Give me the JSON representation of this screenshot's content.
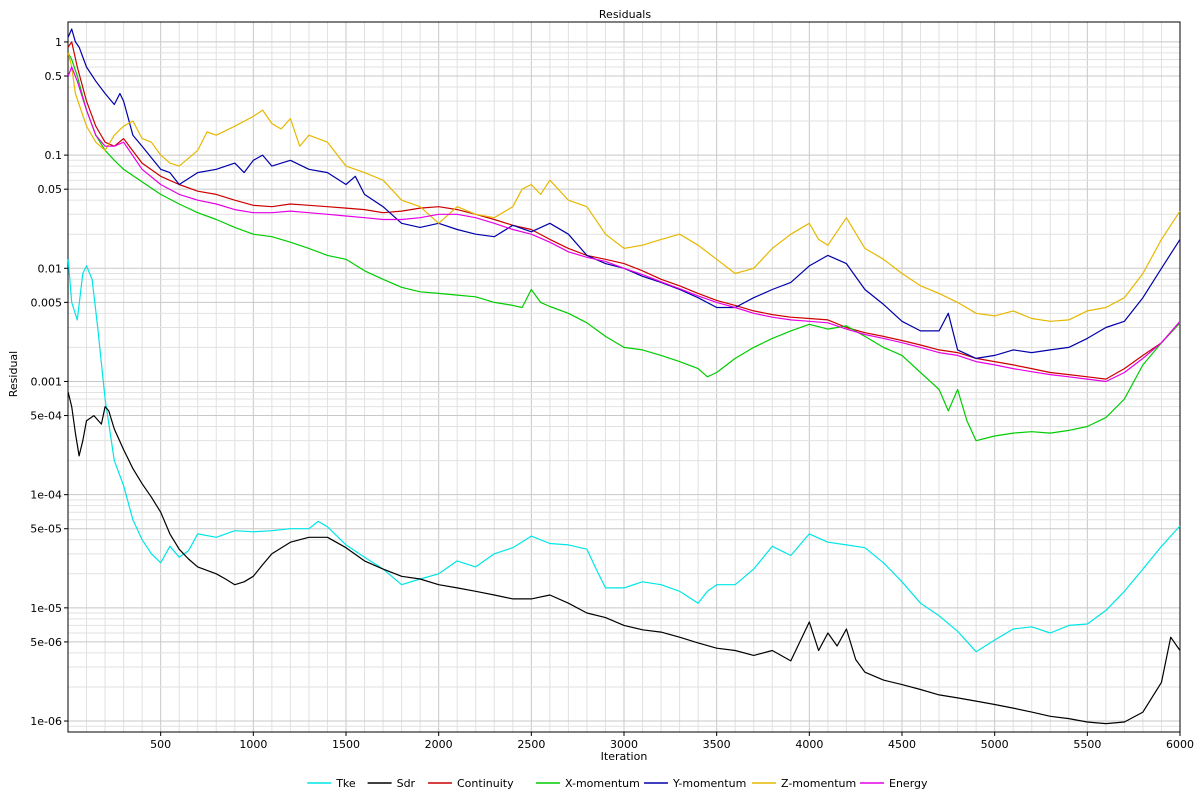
{
  "chart_data": {
    "type": "line",
    "title": "Residuals",
    "xlabel": "Iteration",
    "ylabel": "Residual",
    "xlim": [
      0,
      6000
    ],
    "ylim": [
      8e-07,
      1.5
    ],
    "yscale": "log",
    "grid": true,
    "legend_position": "bottom",
    "xticks": [
      500,
      1000,
      1500,
      2000,
      2500,
      3000,
      3500,
      4000,
      4500,
      5000,
      5500,
      6000
    ],
    "yticks": [
      {
        "value": 1,
        "label": "1"
      },
      {
        "value": 0.5,
        "label": "0.5"
      },
      {
        "value": 0.1,
        "label": "0.1"
      },
      {
        "value": 0.05,
        "label": "0.05"
      },
      {
        "value": 0.01,
        "label": "0.01"
      },
      {
        "value": 0.005,
        "label": "0.005"
      },
      {
        "value": 0.001,
        "label": "0.001"
      },
      {
        "value": 0.0005,
        "label": "5e-04"
      },
      {
        "value": 0.0001,
        "label": "1e-04"
      },
      {
        "value": 5e-05,
        "label": "5e-05"
      },
      {
        "value": 1e-05,
        "label": "1e-05"
      },
      {
        "value": 5e-06,
        "label": "5e-06"
      },
      {
        "value": 1e-06,
        "label": "1e-06"
      }
    ],
    "series": [
      {
        "name": "Tke",
        "color": "#00e6e6",
        "x": [
          1,
          20,
          50,
          80,
          100,
          130,
          160,
          200,
          250,
          300,
          350,
          400,
          450,
          500,
          550,
          600,
          650,
          700,
          800,
          900,
          1000,
          1100,
          1200,
          1300,
          1350,
          1400,
          1500,
          1600,
          1700,
          1800,
          1900,
          2000,
          2100,
          2200,
          2300,
          2400,
          2500,
          2600,
          2700,
          2800,
          2850,
          2900,
          3000,
          3100,
          3200,
          3300,
          3400,
          3450,
          3500,
          3600,
          3700,
          3800,
          3900,
          4000,
          4100,
          4200,
          4300,
          4400,
          4500,
          4600,
          4700,
          4800,
          4900,
          5000,
          5100,
          5200,
          5300,
          5400,
          5500,
          5600,
          5700,
          5800,
          5900,
          6000
        ],
        "y": [
          0.012,
          0.005,
          0.0035,
          0.009,
          0.0105,
          0.008,
          0.003,
          0.0007,
          0.0002,
          0.00012,
          6e-05,
          4e-05,
          3e-05,
          2.5e-05,
          3.5e-05,
          2.8e-05,
          3.2e-05,
          4.5e-05,
          4.2e-05,
          4.8e-05,
          4.7e-05,
          4.8e-05,
          5e-05,
          5e-05,
          5.8e-05,
          5.2e-05,
          3.6e-05,
          2.8e-05,
          2.2e-05,
          1.6e-05,
          1.8e-05,
          2e-05,
          2.6e-05,
          2.3e-05,
          3e-05,
          3.4e-05,
          4.3e-05,
          3.7e-05,
          3.6e-05,
          3.3e-05,
          2.2e-05,
          1.5e-05,
          1.5e-05,
          1.7e-05,
          1.6e-05,
          1.4e-05,
          1.1e-05,
          1.4e-05,
          1.6e-05,
          1.6e-05,
          2.2e-05,
          3.5e-05,
          2.9e-05,
          4.5e-05,
          3.8e-05,
          3.6e-05,
          3.4e-05,
          2.5e-05,
          1.7e-05,
          1.1e-05,
          8.5e-06,
          6.2e-06,
          4.1e-06,
          5.2e-06,
          6.5e-06,
          6.8e-06,
          6e-06,
          7e-06,
          7.2e-06,
          9.5e-06,
          1.4e-05,
          2.2e-05,
          3.5e-05,
          5.3e-05
        ]
      },
      {
        "name": "Sdr",
        "color": "#000000",
        "x": [
          1,
          20,
          40,
          60,
          80,
          100,
          140,
          180,
          200,
          220,
          250,
          300,
          350,
          400,
          450,
          500,
          550,
          600,
          650,
          700,
          800,
          850,
          900,
          950,
          1000,
          1050,
          1100,
          1200,
          1300,
          1400,
          1500,
          1600,
          1700,
          1800,
          1900,
          2000,
          2100,
          2200,
          2300,
          2400,
          2500,
          2600,
          2700,
          2800,
          2900,
          3000,
          3100,
          3200,
          3300,
          3400,
          3500,
          3600,
          3700,
          3800,
          3900,
          4000,
          4050,
          4100,
          4150,
          4200,
          4250,
          4300,
          4400,
          4500,
          4600,
          4700,
          4800,
          4900,
          5000,
          5100,
          5200,
          5300,
          5400,
          5500,
          5600,
          5700,
          5800,
          5900,
          5950,
          6000
        ],
        "y": [
          0.0008,
          0.0006,
          0.00035,
          0.00022,
          0.0003,
          0.00045,
          0.0005,
          0.00042,
          0.0006,
          0.00055,
          0.00038,
          0.00025,
          0.00017,
          0.000125,
          9.5e-05,
          7e-05,
          4.5e-05,
          3.3e-05,
          2.7e-05,
          2.3e-05,
          2e-05,
          1.8e-05,
          1.6e-05,
          1.7e-05,
          1.9e-05,
          2.4e-05,
          3e-05,
          3.8e-05,
          4.2e-05,
          4.2e-05,
          3.4e-05,
          2.6e-05,
          2.2e-05,
          1.9e-05,
          1.8e-05,
          1.6e-05,
          1.5e-05,
          1.4e-05,
          1.3e-05,
          1.2e-05,
          1.2e-05,
          1.3e-05,
          1.1e-05,
          9e-06,
          8.2e-06,
          7e-06,
          6.4e-06,
          6.1e-06,
          5.5e-06,
          4.9e-06,
          4.4e-06,
          4.2e-06,
          3.8e-06,
          4.2e-06,
          3.4e-06,
          7.5e-06,
          4.2e-06,
          6e-06,
          4.6e-06,
          6.5e-06,
          3.5e-06,
          2.7e-06,
          2.3e-06,
          2.1e-06,
          1.9e-06,
          1.7e-06,
          1.6e-06,
          1.5e-06,
          1.4e-06,
          1.3e-06,
          1.2e-06,
          1.1e-06,
          1.05e-06,
          9.8e-07,
          9.5e-07,
          9.8e-07,
          1.2e-06,
          2.2e-06,
          5.5e-06,
          4.2e-06
        ]
      },
      {
        "name": "Continuity",
        "color": "#cc0000",
        "x": [
          1,
          20,
          50,
          100,
          150,
          200,
          250,
          300,
          400,
          500,
          600,
          700,
          800,
          900,
          1000,
          1100,
          1200,
          1300,
          1400,
          1500,
          1600,
          1700,
          1800,
          1900,
          2000,
          2100,
          2200,
          2300,
          2400,
          2500,
          2600,
          2700,
          2800,
          2900,
          3000,
          3100,
          3200,
          3300,
          3400,
          3500,
          3600,
          3700,
          3800,
          3900,
          4000,
          4100,
          4200,
          4300,
          4400,
          4500,
          4600,
          4700,
          4800,
          4900,
          5000,
          5100,
          5200,
          5300,
          5400,
          5500,
          5600,
          5700,
          5800,
          5900,
          6000
        ],
        "y": [
          0.9,
          1.0,
          0.6,
          0.3,
          0.18,
          0.13,
          0.12,
          0.14,
          0.085,
          0.065,
          0.055,
          0.048,
          0.045,
          0.04,
          0.036,
          0.035,
          0.037,
          0.036,
          0.035,
          0.034,
          0.033,
          0.031,
          0.032,
          0.034,
          0.035,
          0.033,
          0.03,
          0.027,
          0.024,
          0.022,
          0.018,
          0.015,
          0.013,
          0.012,
          0.011,
          0.0095,
          0.008,
          0.007,
          0.006,
          0.0052,
          0.0047,
          0.0042,
          0.0039,
          0.0037,
          0.0036,
          0.0035,
          0.003,
          0.0027,
          0.0025,
          0.0023,
          0.0021,
          0.0019,
          0.0018,
          0.0016,
          0.0015,
          0.0014,
          0.0013,
          0.0012,
          0.00115,
          0.0011,
          0.00105,
          0.0013,
          0.0017,
          0.0022,
          0.0033
        ]
      },
      {
        "name": "X-momentum",
        "color": "#00cc00",
        "x": [
          1,
          20,
          50,
          100,
          150,
          200,
          250,
          300,
          400,
          500,
          600,
          700,
          800,
          900,
          1000,
          1100,
          1200,
          1300,
          1400,
          1500,
          1600,
          1700,
          1800,
          1900,
          2000,
          2100,
          2200,
          2300,
          2400,
          2450,
          2500,
          2550,
          2600,
          2700,
          2800,
          2900,
          3000,
          3100,
          3200,
          3300,
          3400,
          3450,
          3500,
          3600,
          3700,
          3800,
          3900,
          4000,
          4100,
          4200,
          4300,
          4400,
          4500,
          4600,
          4700,
          4750,
          4800,
          4850,
          4900,
          5000,
          5100,
          5200,
          5300,
          5400,
          5500,
          5600,
          5700,
          5800,
          5900,
          6000
        ],
        "y": [
          0.8,
          0.7,
          0.5,
          0.25,
          0.15,
          0.11,
          0.09,
          0.075,
          0.058,
          0.045,
          0.037,
          0.031,
          0.027,
          0.023,
          0.02,
          0.019,
          0.017,
          0.015,
          0.013,
          0.012,
          0.0095,
          0.008,
          0.0068,
          0.0062,
          0.006,
          0.0058,
          0.0056,
          0.005,
          0.0047,
          0.0045,
          0.0065,
          0.005,
          0.0046,
          0.004,
          0.0033,
          0.0025,
          0.002,
          0.0019,
          0.0017,
          0.0015,
          0.0013,
          0.0011,
          0.0012,
          0.0016,
          0.002,
          0.0024,
          0.0028,
          0.0032,
          0.0029,
          0.0031,
          0.0025,
          0.002,
          0.0017,
          0.0012,
          0.00085,
          0.00055,
          0.00085,
          0.00045,
          0.0003,
          0.00033,
          0.00035,
          0.00036,
          0.00035,
          0.00037,
          0.0004,
          0.00048,
          0.0007,
          0.0014,
          0.0022,
          0.0033
        ]
      },
      {
        "name": "Y-momentum",
        "color": "#0000aa",
        "x": [
          1,
          20,
          40,
          60,
          100,
          150,
          200,
          250,
          280,
          300,
          350,
          400,
          500,
          550,
          600,
          700,
          800,
          900,
          950,
          1000,
          1050,
          1100,
          1200,
          1300,
          1400,
          1500,
          1550,
          1600,
          1700,
          1800,
          1900,
          2000,
          2100,
          2200,
          2300,
          2400,
          2500,
          2600,
          2700,
          2800,
          2900,
          3000,
          3100,
          3200,
          3300,
          3400,
          3500,
          3600,
          3700,
          3800,
          3900,
          4000,
          4100,
          4200,
          4300,
          4400,
          4500,
          4600,
          4700,
          4750,
          4800,
          4900,
          5000,
          5100,
          5200,
          5300,
          5400,
          5500,
          5600,
          5700,
          5800,
          5900,
          6000
        ],
        "y": [
          1.1,
          1.3,
          1.0,
          0.9,
          0.6,
          0.45,
          0.35,
          0.28,
          0.35,
          0.3,
          0.15,
          0.12,
          0.075,
          0.07,
          0.055,
          0.07,
          0.075,
          0.085,
          0.07,
          0.09,
          0.1,
          0.08,
          0.09,
          0.075,
          0.07,
          0.055,
          0.065,
          0.045,
          0.035,
          0.025,
          0.023,
          0.025,
          0.022,
          0.02,
          0.019,
          0.024,
          0.021,
          0.025,
          0.02,
          0.013,
          0.011,
          0.01,
          0.0085,
          0.0075,
          0.0065,
          0.0055,
          0.0045,
          0.0045,
          0.0055,
          0.0065,
          0.0075,
          0.0105,
          0.013,
          0.011,
          0.0065,
          0.0048,
          0.0034,
          0.0028,
          0.0028,
          0.004,
          0.0019,
          0.0016,
          0.0017,
          0.0019,
          0.0018,
          0.0019,
          0.002,
          0.0024,
          0.003,
          0.0034,
          0.0055,
          0.01,
          0.018
        ]
      },
      {
        "name": "Z-momentum",
        "color": "#e6b800",
        "x": [
          1,
          20,
          40,
          60,
          100,
          150,
          200,
          250,
          300,
          350,
          400,
          450,
          500,
          550,
          600,
          700,
          750,
          800,
          900,
          1000,
          1050,
          1100,
          1150,
          1200,
          1250,
          1300,
          1400,
          1500,
          1600,
          1700,
          1800,
          1900,
          2000,
          2100,
          2200,
          2300,
          2400,
          2450,
          2500,
          2550,
          2600,
          2700,
          2800,
          2900,
          3000,
          3100,
          3200,
          3300,
          3400,
          3500,
          3600,
          3700,
          3800,
          3900,
          4000,
          4050,
          4100,
          4200,
          4300,
          4400,
          4500,
          4600,
          4700,
          4800,
          4900,
          5000,
          5100,
          5200,
          5300,
          5400,
          5500,
          5600,
          5700,
          5800,
          5900,
          6000
        ],
        "y": [
          0.8,
          0.6,
          0.35,
          0.28,
          0.18,
          0.13,
          0.11,
          0.15,
          0.18,
          0.2,
          0.14,
          0.13,
          0.1,
          0.085,
          0.08,
          0.11,
          0.16,
          0.15,
          0.18,
          0.22,
          0.25,
          0.19,
          0.17,
          0.21,
          0.12,
          0.15,
          0.13,
          0.08,
          0.07,
          0.06,
          0.04,
          0.035,
          0.025,
          0.035,
          0.03,
          0.028,
          0.035,
          0.05,
          0.055,
          0.045,
          0.06,
          0.04,
          0.035,
          0.02,
          0.015,
          0.016,
          0.018,
          0.02,
          0.016,
          0.012,
          0.009,
          0.01,
          0.015,
          0.02,
          0.025,
          0.018,
          0.016,
          0.028,
          0.015,
          0.012,
          0.009,
          0.007,
          0.006,
          0.005,
          0.004,
          0.0038,
          0.0042,
          0.0036,
          0.0034,
          0.0035,
          0.0042,
          0.0045,
          0.0055,
          0.009,
          0.018,
          0.032
        ]
      },
      {
        "name": "Energy",
        "color": "#e600e6",
        "x": [
          1,
          20,
          50,
          100,
          150,
          200,
          250,
          300,
          400,
          500,
          600,
          700,
          800,
          900,
          1000,
          1100,
          1200,
          1300,
          1400,
          1500,
          1600,
          1700,
          1800,
          1900,
          2000,
          2100,
          2200,
          2300,
          2400,
          2500,
          2600,
          2700,
          2800,
          2900,
          3000,
          3100,
          3200,
          3300,
          3400,
          3500,
          3600,
          3700,
          3800,
          3900,
          4000,
          4100,
          4200,
          4300,
          4400,
          4500,
          4600,
          4700,
          4800,
          4900,
          5000,
          5100,
          5200,
          5300,
          5400,
          5500,
          5600,
          5700,
          5800,
          5900,
          6000
        ],
        "y": [
          0.5,
          0.6,
          0.45,
          0.25,
          0.15,
          0.12,
          0.12,
          0.13,
          0.075,
          0.055,
          0.045,
          0.04,
          0.037,
          0.033,
          0.031,
          0.031,
          0.032,
          0.031,
          0.03,
          0.029,
          0.028,
          0.027,
          0.027,
          0.028,
          0.03,
          0.03,
          0.028,
          0.025,
          0.022,
          0.02,
          0.017,
          0.014,
          0.0125,
          0.0115,
          0.01,
          0.0088,
          0.0076,
          0.0066,
          0.0057,
          0.005,
          0.0045,
          0.004,
          0.0037,
          0.0035,
          0.0034,
          0.0033,
          0.0029,
          0.0026,
          0.0024,
          0.0022,
          0.002,
          0.0018,
          0.0017,
          0.0015,
          0.0014,
          0.0013,
          0.00122,
          0.00115,
          0.0011,
          0.00105,
          0.001,
          0.0012,
          0.0016,
          0.0022,
          0.0034
        ]
      }
    ]
  }
}
